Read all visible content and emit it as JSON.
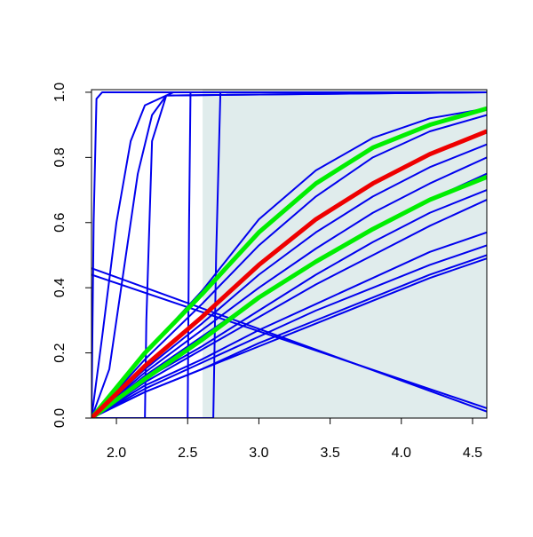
{
  "chart_data": {
    "type": "line",
    "xlim": [
      1.825,
      4.6
    ],
    "ylim": [
      0,
      1.008
    ],
    "xticks": [
      {
        "value": 2,
        "label": "2.0"
      },
      2.5,
      {
        "value": 3,
        "label": "3.0"
      },
      3.5,
      {
        "value": 4,
        "label": "4.0"
      },
      4.5
    ],
    "yticks": [
      {
        "value": 0,
        "label": "0.0"
      },
      0.2,
      0.4,
      0.6,
      0.8,
      {
        "value": 1,
        "label": "1.0"
      }
    ],
    "grid": false,
    "shaded_xrange": [
      2.605,
      4.6
    ],
    "shade_color": "#e0ecec",
    "series": [
      {
        "color": "#0000ee",
        "line_width": 2,
        "x": [
          1.825,
          1.84,
          1.86,
          1.9,
          4.6
        ],
        "values": [
          0,
          0.6,
          0.98,
          1,
          1
        ]
      },
      {
        "color": "#0000ee",
        "line_width": 2,
        "x": [
          1.825,
          1.9,
          2.0,
          2.1,
          2.2,
          2.4,
          4.6
        ],
        "values": [
          0,
          0.25,
          0.6,
          0.85,
          0.96,
          1,
          1
        ]
      },
      {
        "color": "#0000ee",
        "line_width": 2,
        "x": [
          1.825,
          1.95,
          2.05,
          2.15,
          2.25,
          2.35,
          4.6
        ],
        "values": [
          0,
          0.15,
          0.45,
          0.75,
          0.93,
          0.99,
          1
        ]
      },
      {
        "color": "#0000ee",
        "line_width": 2,
        "x": [
          1.825,
          2.2,
          2.21,
          2.25,
          2.35,
          4.6
        ],
        "values": [
          0,
          0,
          0.3,
          0.85,
          0.99,
          1
        ]
      },
      {
        "color": "#0000ee",
        "line_width": 2,
        "x": [
          1.825,
          2.5,
          2.51,
          2.52,
          4.6
        ],
        "values": [
          0,
          0,
          0.6,
          1,
          1
        ]
      },
      {
        "color": "#0000ee",
        "line_width": 2,
        "x": [
          1.825,
          2.68,
          2.7,
          2.73,
          4.6
        ],
        "values": [
          0,
          0,
          0.5,
          1,
          1
        ]
      },
      {
        "color": "#0000ee",
        "line_width": 2,
        "x": [
          1.825,
          4.6
        ],
        "values": [
          0.46,
          0.02
        ]
      },
      {
        "color": "#0000ee",
        "line_width": 2,
        "x": [
          1.825,
          4.6
        ],
        "values": [
          0.44,
          0.03
        ]
      },
      {
        "color": "#0000ee",
        "line_width": 2,
        "x": [
          1.825,
          2.2,
          2.6,
          3.0,
          3.4,
          3.8,
          4.2,
          4.6
        ],
        "values": [
          0,
          0.2,
          0.39,
          0.61,
          0.76,
          0.86,
          0.92,
          0.95
        ]
      },
      {
        "color": "#0000ee",
        "line_width": 2,
        "x": [
          1.825,
          2.2,
          2.6,
          3.0,
          3.4,
          3.8,
          4.2,
          4.6
        ],
        "values": [
          0,
          0.18,
          0.35,
          0.53,
          0.68,
          0.8,
          0.88,
          0.93
        ]
      },
      {
        "color": "#0000ee",
        "line_width": 2,
        "x": [
          1.825,
          2.2,
          2.6,
          3.0,
          3.4,
          3.8,
          4.2,
          4.6
        ],
        "values": [
          0,
          0.15,
          0.29,
          0.44,
          0.57,
          0.68,
          0.77,
          0.84
        ]
      },
      {
        "color": "#0000ee",
        "line_width": 2,
        "x": [
          1.825,
          2.2,
          2.6,
          3.0,
          3.4,
          3.8,
          4.2,
          4.6
        ],
        "values": [
          0,
          0.14,
          0.27,
          0.4,
          0.52,
          0.63,
          0.72,
          0.8
        ]
      },
      {
        "color": "#0000ee",
        "line_width": 2,
        "x": [
          1.825,
          2.2,
          2.6,
          3.0,
          3.4,
          3.8,
          4.2,
          4.6
        ],
        "values": [
          0,
          0.13,
          0.25,
          0.37,
          0.48,
          0.58,
          0.67,
          0.75
        ]
      },
      {
        "color": "#0000ee",
        "line_width": 2,
        "x": [
          1.825,
          2.2,
          2.6,
          3.0,
          3.4,
          3.8,
          4.2,
          4.6
        ],
        "values": [
          0,
          0.12,
          0.22,
          0.33,
          0.44,
          0.54,
          0.63,
          0.7
        ]
      },
      {
        "color": "#0000ee",
        "line_width": 2,
        "x": [
          1.825,
          2.2,
          2.6,
          3.0,
          3.4,
          3.8,
          4.2,
          4.6
        ],
        "values": [
          0,
          0.11,
          0.21,
          0.31,
          0.41,
          0.5,
          0.59,
          0.67
        ]
      },
      {
        "color": "#0000ee",
        "line_width": 2,
        "x": [
          1.825,
          2.2,
          2.6,
          3.0,
          3.4,
          3.8,
          4.2,
          4.6
        ],
        "values": [
          0,
          0.1,
          0.18,
          0.27,
          0.35,
          0.43,
          0.51,
          0.57
        ]
      },
      {
        "color": "#0000ee",
        "line_width": 2,
        "x": [
          1.825,
          2.2,
          2.6,
          3.0,
          3.4,
          3.8,
          4.2,
          4.6
        ],
        "values": [
          0,
          0.09,
          0.17,
          0.25,
          0.33,
          0.4,
          0.47,
          0.53
        ]
      },
      {
        "color": "#0000ee",
        "line_width": 2,
        "x": [
          1.825,
          2.2,
          2.6,
          3.0,
          3.4,
          3.8,
          4.2,
          4.6
        ],
        "values": [
          0,
          0.08,
          0.15,
          0.23,
          0.3,
          0.37,
          0.44,
          0.5
        ]
      },
      {
        "color": "#0000ee",
        "line_width": 2,
        "x": [
          1.825,
          2.2,
          2.6,
          3.0,
          3.4,
          3.8,
          4.2,
          4.6
        ],
        "values": [
          0,
          0.08,
          0.15,
          0.22,
          0.29,
          0.36,
          0.43,
          0.49
        ]
      },
      {
        "color": "#00ee00",
        "line_width": 5,
        "x": [
          1.825,
          2.2,
          2.6,
          3.0,
          3.4,
          3.8,
          4.2,
          4.6
        ],
        "values": [
          0,
          0.2,
          0.38,
          0.57,
          0.72,
          0.83,
          0.9,
          0.95
        ]
      },
      {
        "color": "#00ee00",
        "line_width": 5,
        "x": [
          1.825,
          2.2,
          2.6,
          3.0,
          3.4,
          3.8,
          4.2,
          4.6
        ],
        "values": [
          0,
          0.12,
          0.24,
          0.37,
          0.48,
          0.58,
          0.67,
          0.74
        ]
      },
      {
        "color": "#ee0000",
        "line_width": 5,
        "x": [
          1.825,
          2.2,
          2.6,
          3.0,
          3.4,
          3.8,
          4.2,
          4.6
        ],
        "values": [
          0,
          0.16,
          0.31,
          0.47,
          0.61,
          0.72,
          0.81,
          0.88
        ]
      }
    ]
  }
}
